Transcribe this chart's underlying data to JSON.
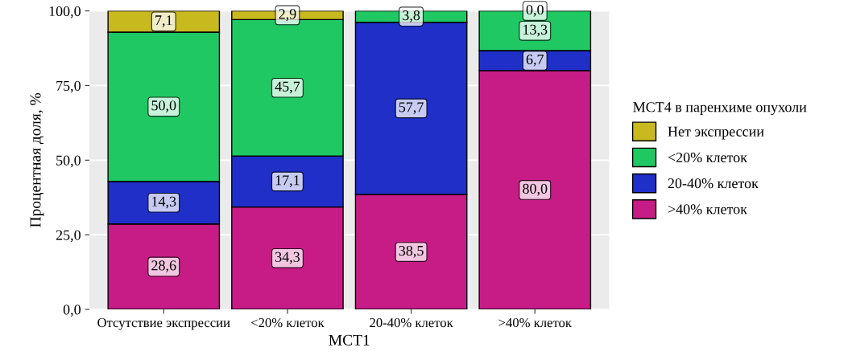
{
  "chart_data": {
    "type": "bar",
    "stacked": true,
    "xlabel": "МСТ1",
    "ylabel": "Процентная доля, %",
    "legend_title": "МСТ4 в паренхиме опухоли",
    "legend": "right",
    "categories": [
      "Отсутствие экспрессии",
      "<20% клеток",
      "20-40% клеток",
      ">40% клеток"
    ],
    "ylim": [
      0,
      100
    ],
    "yticks": [
      {
        "value": 0,
        "label": "0,0"
      },
      {
        "value": 25,
        "label": "25,0"
      },
      {
        "value": 50,
        "label": "50,0"
      },
      {
        "value": 75,
        "label": "75,0"
      },
      {
        "value": 100,
        "label": "100,0"
      }
    ],
    "grid": true,
    "series": [
      {
        "name": ">40% клеток",
        "color": "#c71c85",
        "values": [
          28.6,
          34.3,
          38.5,
          80.0
        ],
        "value_labels": [
          "28,6",
          "34,3",
          "38,5",
          "80,0"
        ]
      },
      {
        "name": "20-40% клеток",
        "color": "#1f2fc8",
        "values": [
          14.3,
          17.1,
          57.7,
          6.7
        ],
        "value_labels": [
          "14,3",
          "17,1",
          "57,7",
          "6,7"
        ]
      },
      {
        "name": "<20% клеток",
        "color": "#1fc863",
        "values": [
          50.0,
          45.7,
          3.8,
          13.3
        ],
        "value_labels": [
          "50,0",
          "45,7",
          "3,8",
          "13,3"
        ]
      },
      {
        "name": "Нет экспрессии",
        "color": "#c8b91f",
        "values": [
          7.1,
          2.9,
          0.0,
          0.0
        ],
        "value_labels": [
          "7,1",
          "2,9",
          null,
          "0,0"
        ]
      }
    ]
  }
}
